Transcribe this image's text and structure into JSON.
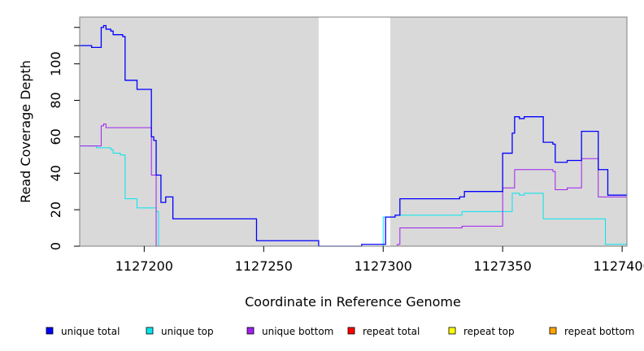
{
  "chart_data": {
    "type": "line",
    "xlabel": "Coordinate in Reference Genome",
    "ylabel": "Read Coverage Depth",
    "xlim": [
      1127173,
      1127402
    ],
    "ylim": [
      0,
      125
    ],
    "x_ticks": [
      1127200,
      1127250,
      1127300,
      1127350,
      1127400
    ],
    "x_tick_labels": [
      "1127200",
      "1127250",
      "1127300",
      "1127350",
      "1127400"
    ],
    "y_ticks": [
      0,
      20,
      40,
      60,
      80,
      100
    ],
    "y_tick_labels": [
      "0",
      "20",
      "40",
      "60",
      "80",
      "100"
    ],
    "background_color": "#d9d9d9",
    "shaded_regions": [
      {
        "x": [
          1127173,
          1127273
        ]
      },
      {
        "x": [
          1127303,
          1127402
        ]
      }
    ],
    "legend_position": "bottom",
    "series": [
      {
        "name": "unique total",
        "color": "#0000ff",
        "points": [
          [
            1127173,
            110
          ],
          [
            1127178,
            110
          ],
          [
            1127178,
            109
          ],
          [
            1127182,
            109
          ],
          [
            1127182,
            120
          ],
          [
            1127183,
            120
          ],
          [
            1127183,
            121
          ],
          [
            1127184,
            121
          ],
          [
            1127184,
            119
          ],
          [
            1127186,
            119
          ],
          [
            1127186,
            118
          ],
          [
            1127187,
            118
          ],
          [
            1127187,
            116
          ],
          [
            1127191,
            116
          ],
          [
            1127191,
            115
          ],
          [
            1127192,
            115
          ],
          [
            1127192,
            91
          ],
          [
            1127197,
            91
          ],
          [
            1127197,
            86
          ],
          [
            1127203,
            86
          ],
          [
            1127203,
            60
          ],
          [
            1127204,
            60
          ],
          [
            1127204,
            58
          ],
          [
            1127205,
            58
          ],
          [
            1127205,
            39
          ],
          [
            1127207,
            39
          ],
          [
            1127207,
            24
          ],
          [
            1127209,
            24
          ],
          [
            1127209,
            27
          ],
          [
            1127212,
            27
          ],
          [
            1127212,
            15
          ],
          [
            1127247,
            15
          ],
          [
            1127247,
            3
          ],
          [
            1127273,
            3
          ],
          [
            1127273,
            0
          ],
          [
            1127291,
            0
          ],
          [
            1127291,
            1
          ],
          [
            1127301,
            1
          ],
          [
            1127301,
            16
          ],
          [
            1127305,
            16
          ],
          [
            1127305,
            17
          ],
          [
            1127307,
            17
          ],
          [
            1127307,
            26
          ],
          [
            1127332,
            26
          ],
          [
            1127332,
            27
          ],
          [
            1127334,
            27
          ],
          [
            1127334,
            30
          ],
          [
            1127350,
            30
          ],
          [
            1127350,
            51
          ],
          [
            1127354,
            51
          ],
          [
            1127354,
            62
          ],
          [
            1127355,
            62
          ],
          [
            1127355,
            71
          ],
          [
            1127357,
            71
          ],
          [
            1127357,
            70
          ],
          [
            1127359,
            70
          ],
          [
            1127359,
            71
          ],
          [
            1127367,
            71
          ],
          [
            1127367,
            57
          ],
          [
            1127371,
            57
          ],
          [
            1127371,
            56
          ],
          [
            1127372,
            56
          ],
          [
            1127372,
            46
          ],
          [
            1127377,
            46
          ],
          [
            1127377,
            47
          ],
          [
            1127383,
            47
          ],
          [
            1127383,
            63
          ],
          [
            1127390,
            63
          ],
          [
            1127390,
            42
          ],
          [
            1127394,
            42
          ],
          [
            1127394,
            28
          ],
          [
            1127402,
            28
          ]
        ]
      },
      {
        "name": "unique top",
        "color": "#00e5ee",
        "points": [
          [
            1127173,
            55
          ],
          [
            1127180,
            55
          ],
          [
            1127180,
            54
          ],
          [
            1127186,
            54
          ],
          [
            1127186,
            53
          ],
          [
            1127187,
            53
          ],
          [
            1127187,
            51
          ],
          [
            1127190,
            51
          ],
          [
            1127190,
            50
          ],
          [
            1127192,
            50
          ],
          [
            1127192,
            26
          ],
          [
            1127197,
            26
          ],
          [
            1127197,
            21
          ],
          [
            1127205,
            21
          ],
          [
            1127205,
            19
          ],
          [
            1127206,
            19
          ],
          [
            1127206,
            0
          ],
          [
            1127300,
            0
          ],
          [
            1127300,
            16
          ],
          [
            1127305,
            16
          ],
          [
            1127305,
            17
          ],
          [
            1127333,
            17
          ],
          [
            1127333,
            19
          ],
          [
            1127354,
            19
          ],
          [
            1127354,
            29
          ],
          [
            1127357,
            29
          ],
          [
            1127357,
            28
          ],
          [
            1127359,
            28
          ],
          [
            1127359,
            29
          ],
          [
            1127367,
            29
          ],
          [
            1127367,
            15
          ],
          [
            1127393,
            15
          ],
          [
            1127393,
            1
          ],
          [
            1127402,
            1
          ]
        ]
      },
      {
        "name": "unique bottom",
        "color": "#a020f0",
        "points": [
          [
            1127173,
            55
          ],
          [
            1127182,
            55
          ],
          [
            1127182,
            66
          ],
          [
            1127183,
            66
          ],
          [
            1127183,
            67
          ],
          [
            1127184,
            67
          ],
          [
            1127184,
            65
          ],
          [
            1127203,
            65
          ],
          [
            1127203,
            39
          ],
          [
            1127205,
            39
          ],
          [
            1127205,
            0
          ],
          [
            1127306,
            0
          ],
          [
            1127306,
            1
          ],
          [
            1127307,
            1
          ],
          [
            1127307,
            10
          ],
          [
            1127333,
            10
          ],
          [
            1127333,
            11
          ],
          [
            1127350,
            11
          ],
          [
            1127350,
            32
          ],
          [
            1127355,
            32
          ],
          [
            1127355,
            42
          ],
          [
            1127371,
            42
          ],
          [
            1127371,
            41
          ],
          [
            1127372,
            41
          ],
          [
            1127372,
            31
          ],
          [
            1127377,
            31
          ],
          [
            1127377,
            32
          ],
          [
            1127383,
            32
          ],
          [
            1127383,
            48
          ],
          [
            1127390,
            48
          ],
          [
            1127390,
            27
          ],
          [
            1127402,
            27
          ]
        ]
      },
      {
        "name": "repeat total",
        "color": "#ff0000",
        "points": [
          [
            1127173,
            0
          ],
          [
            1127402,
            0
          ]
        ]
      },
      {
        "name": "repeat top",
        "color": "#ffff00",
        "points": [
          [
            1127173,
            0
          ],
          [
            1127402,
            0
          ]
        ]
      },
      {
        "name": "repeat bottom",
        "color": "#ffa500",
        "points": [
          [
            1127173,
            0
          ],
          [
            1127402,
            0
          ]
        ]
      }
    ]
  }
}
